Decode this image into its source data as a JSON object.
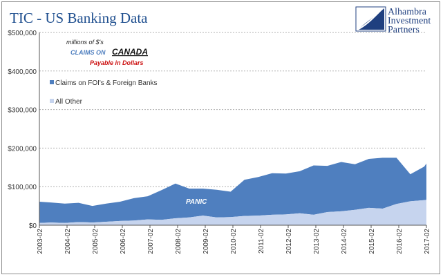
{
  "chart_data": {
    "type": "area",
    "title": "TIC - US Banking Data",
    "annotations": {
      "units": "millions of $'s",
      "claims_prefix": "CLAIMS ON",
      "claims_country": "CANADA",
      "payable": "Payable in Dollars",
      "panic": "PANIC"
    },
    "logo": {
      "lines": [
        "Alhambra",
        "Investment",
        "Partners"
      ]
    },
    "x_tick_labels": [
      "2003-02",
      "2004-02",
      "2005-02",
      "2006-02",
      "2007-02",
      "2008-02",
      "2009-02",
      "2010-02",
      "2011-02",
      "2012-02",
      "2013-02",
      "2014-02",
      "2015-02",
      "2016-02",
      "2017-02"
    ],
    "y_tick_labels": [
      "$0",
      "$100,000",
      "$200,000",
      "$300,000",
      "$400,000",
      "$500,000"
    ],
    "ylim": [
      0,
      500000
    ],
    "x_range": [
      2003.083,
      2017.083
    ],
    "stacked": true,
    "grid": "horizontal dashed",
    "legend_placement": "top-left",
    "colors": {
      "all_other": "#c6d4ee",
      "foi": "#4f7fbf"
    },
    "series_labels": {
      "foi": "Claims on FOI's & Foreign Banks",
      "all_other": "All Other"
    },
    "x": [
      2003.083,
      2003.5,
      2004.0,
      2004.5,
      2005.0,
      2005.5,
      2006.0,
      2006.5,
      2007.0,
      2007.5,
      2008.0,
      2008.5,
      2009.0,
      2009.5,
      2010.0,
      2010.5,
      2011.0,
      2011.5,
      2012.0,
      2012.5,
      2013.0,
      2013.5,
      2014.0,
      2014.5,
      2015.0,
      2015.5,
      2016.0,
      2016.5,
      2017.0,
      2017.083
    ],
    "all_other": [
      6000,
      7000,
      6000,
      8000,
      7000,
      9000,
      11000,
      12000,
      15000,
      14000,
      18000,
      20000,
      25000,
      20000,
      21000,
      24000,
      25000,
      27000,
      28000,
      31000,
      27000,
      34000,
      36000,
      40000,
      45000,
      43000,
      55000,
      62000,
      65000,
      66000
    ],
    "foi": [
      55000,
      52000,
      50000,
      50000,
      43000,
      47000,
      50000,
      58000,
      60000,
      77000,
      90000,
      75000,
      70000,
      72000,
      66000,
      94000,
      100000,
      108000,
      106000,
      109000,
      128000,
      120000,
      128000,
      118000,
      127000,
      132000,
      120000,
      70000,
      87000,
      94000
    ]
  }
}
